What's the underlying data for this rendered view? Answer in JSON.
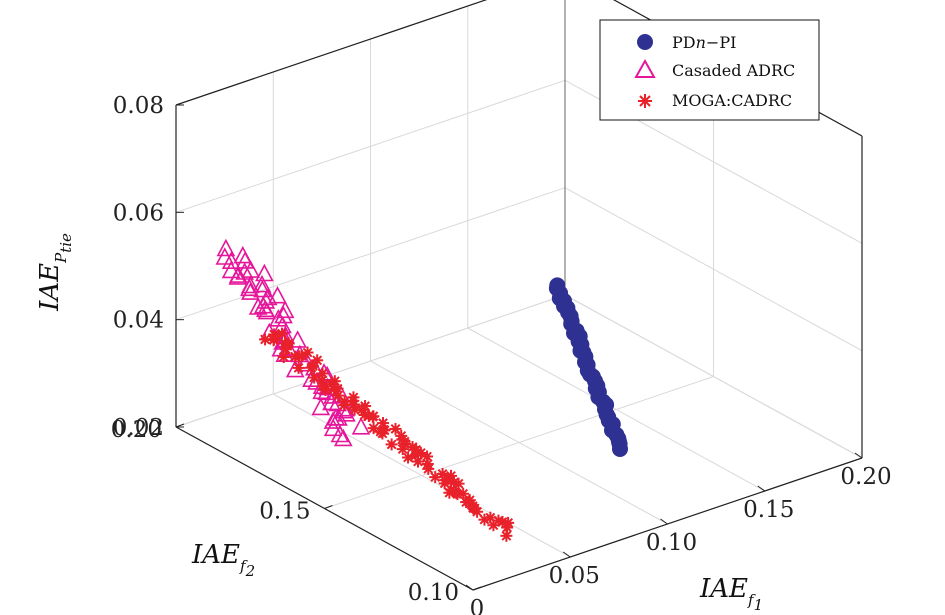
{
  "chart_data": {
    "type": "scatter3d",
    "axes": {
      "x": {
        "label_main": "IAE",
        "label_sub": "f",
        "label_subsub": "1",
        "ticks": [
          "0",
          "0.05",
          "0.10",
          "0.15",
          "0.20"
        ],
        "range": [
          0,
          0.2
        ]
      },
      "y": {
        "label_main": "IAE",
        "label_sub": "f",
        "label_subsub": "2",
        "ticks": [
          "0.10",
          "0.15",
          "0.20"
        ],
        "range": [
          0.1,
          0.2
        ]
      },
      "z": {
        "label_main": "IAE",
        "label_sub": "P",
        "label_subsub": "tie",
        "ticks": [
          "0.02",
          "0.04",
          "0.06",
          "0.08"
        ],
        "range": [
          0.02,
          0.08
        ]
      }
    },
    "grid": true,
    "legend_position": "top-right",
    "legend": [
      {
        "label_pre": "PD",
        "label_ital": "n",
        "label_post": "−PI"
      },
      {
        "label_pre": "Casaded ADRC",
        "label_ital": "",
        "label_post": ""
      },
      {
        "label_pre": "MOGA:CADRC",
        "label_ital": "",
        "label_post": ""
      }
    ],
    "series": [
      {
        "name": "PDn−PI",
        "marker": "circle",
        "color": "#2e3192",
        "start": [
          0.0945,
          0.1335,
          0.055
        ],
        "end": [
          0.1035,
          0.118,
          0.028
        ],
        "count": 42
      },
      {
        "name": "Casaded ADRC",
        "marker": "triangle",
        "color": "#e6169b",
        "start": [
          0.012,
          0.188,
          0.055
        ],
        "end": [
          0.0255,
          0.1575,
          0.028
        ],
        "count": 64
      },
      {
        "name": "MOGA:CADRC",
        "marker": "asterisk",
        "color": "#e8212b",
        "start": [
          0.006,
          0.1725,
          0.045
        ],
        "end": [
          0.039,
          0.114,
          0.022
        ],
        "count": 90
      }
    ]
  }
}
